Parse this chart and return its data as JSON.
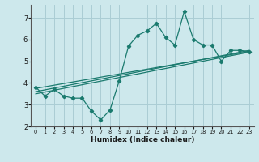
{
  "xlabel": "Humidex (Indice chaleur)",
  "bg_color": "#cde8ec",
  "grid_color": "#aacdd4",
  "line_color": "#1a7a6e",
  "xlim": [
    -0.5,
    23.5
  ],
  "ylim": [
    2,
    7.6
  ],
  "yticks": [
    2,
    3,
    4,
    5,
    6,
    7
  ],
  "xticks": [
    0,
    1,
    2,
    3,
    4,
    5,
    6,
    7,
    8,
    9,
    10,
    11,
    12,
    13,
    14,
    15,
    16,
    17,
    18,
    19,
    20,
    21,
    22,
    23
  ],
  "series1_x": [
    0,
    1,
    2,
    3,
    4,
    5,
    6,
    7,
    8,
    9,
    10,
    11,
    12,
    13,
    14,
    15,
    16,
    17,
    18,
    19,
    20,
    21,
    22,
    23
  ],
  "series1_y": [
    3.8,
    3.4,
    3.7,
    3.4,
    3.3,
    3.3,
    2.7,
    2.3,
    2.75,
    4.1,
    5.7,
    6.2,
    6.4,
    6.75,
    6.1,
    5.75,
    7.3,
    6.0,
    5.75,
    5.75,
    5.0,
    5.5,
    5.5,
    5.45
  ],
  "series2_x": [
    0,
    23
  ],
  "series2_y": [
    3.75,
    5.45
  ],
  "series3_x": [
    0,
    23
  ],
  "series3_y": [
    3.6,
    5.5
  ],
  "series4_x": [
    0,
    23
  ],
  "series4_y": [
    3.5,
    5.42
  ]
}
